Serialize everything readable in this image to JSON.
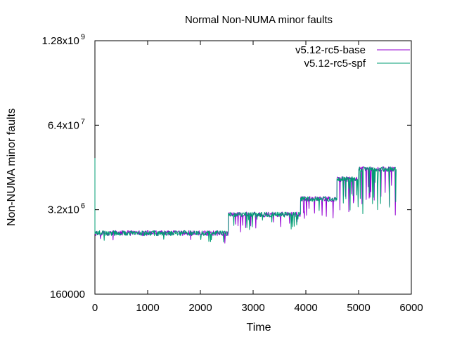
{
  "chart_data": {
    "type": "line",
    "title": "Normal Non-NUMA minor faults",
    "xlabel": "Time",
    "ylabel": "Non-NUMA minor faults",
    "xlim": [
      0,
      6000
    ],
    "ylim": [
      160000,
      1280000000
    ],
    "y_scale": "log",
    "grid": false,
    "legend_position": "top-right",
    "x_ticks": [
      {
        "value": 0,
        "label": "0"
      },
      {
        "value": 1000,
        "label": "1000"
      },
      {
        "value": 2000,
        "label": "2000"
      },
      {
        "value": 3000,
        "label": "3000"
      },
      {
        "value": 4000,
        "label": "4000"
      },
      {
        "value": 5000,
        "label": "5000"
      },
      {
        "value": 6000,
        "label": "6000"
      }
    ],
    "y_ticks": [
      {
        "value": 160000,
        "mantissa": "160000",
        "exp": ""
      },
      {
        "value": 3200000,
        "mantissa": "3.2x10",
        "exp": "6"
      },
      {
        "value": 64000000,
        "mantissa": "6.4x10",
        "exp": "7"
      },
      {
        "value": 1280000000,
        "mantissa": "1.28x10",
        "exp": "9"
      }
    ],
    "series": [
      {
        "name": "v5.12-rc5-base",
        "color": "#9400d3",
        "segments": [
          {
            "x_start": 0,
            "x_end": 2530,
            "level": 1400000,
            "dip_depth": 0.3,
            "dip_every": 400
          },
          {
            "x_start": 2530,
            "x_end": 3900,
            "level": 2700000,
            "dip_depth": 0.45,
            "dip_every": 120
          },
          {
            "x_start": 3900,
            "x_end": 4590,
            "level": 4700000,
            "dip_depth": 0.6,
            "dip_every": 100
          },
          {
            "x_start": 4590,
            "x_end": 5000,
            "level": 9500000,
            "dip_depth": 0.75,
            "dip_every": 60
          },
          {
            "x_start": 5000,
            "x_end": 5720,
            "level": 13500000,
            "dip_depth": 0.85,
            "dip_every": 40
          }
        ]
      },
      {
        "name": "v5.12-rc5-spf",
        "color": "#009e73",
        "segments": [
          {
            "x_start": 0,
            "x_end": 2530,
            "level": 1400000,
            "dip_depth": 0.3,
            "dip_every": 400
          },
          {
            "x_start": 2530,
            "x_end": 3900,
            "level": 2700000,
            "dip_depth": 0.45,
            "dip_every": 120
          },
          {
            "x_start": 3900,
            "x_end": 4590,
            "level": 4700000,
            "dip_depth": 0.6,
            "dip_every": 100
          },
          {
            "x_start": 4590,
            "x_end": 5000,
            "level": 9500000,
            "dip_depth": 0.75,
            "dip_every": 60
          },
          {
            "x_start": 5000,
            "x_end": 5720,
            "level": 13500000,
            "dip_depth": 0.85,
            "dip_every": 40
          }
        ],
        "initial_spike": 20000000
      }
    ]
  }
}
